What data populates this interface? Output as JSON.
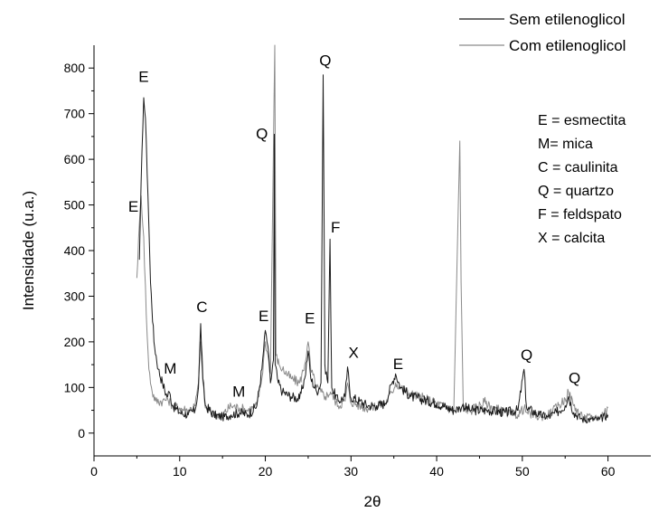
{
  "chart_data": {
    "type": "line",
    "xlabel": "2θ",
    "ylabel": "Intensidade (u.a.)",
    "xlim": [
      0,
      65
    ],
    "ylim": [
      -50,
      850
    ],
    "x_ticks": [
      0,
      10,
      20,
      30,
      40,
      50,
      60
    ],
    "y_ticks": [
      0,
      100,
      200,
      300,
      400,
      500,
      600,
      700,
      800
    ],
    "grid": false,
    "legend_position": "top-right",
    "series": [
      {
        "name": "Sem etilenoglicol",
        "color": "#1a1a1a",
        "points": [
          [
            5.3,
            380
          ],
          [
            5.6,
            620
          ],
          [
            5.8,
            735
          ],
          [
            6.0,
            690
          ],
          [
            6.3,
            520
          ],
          [
            6.6,
            330
          ],
          [
            7.0,
            200
          ],
          [
            7.5,
            140
          ],
          [
            8.0,
            110
          ],
          [
            8.5,
            80
          ],
          [
            8.8,
            90
          ],
          [
            9.2,
            60
          ],
          [
            10.0,
            45
          ],
          [
            11.0,
            40
          ],
          [
            11.8,
            50
          ],
          [
            12.2,
            100
          ],
          [
            12.45,
            240
          ],
          [
            12.7,
            120
          ],
          [
            13.0,
            60
          ],
          [
            14.0,
            40
          ],
          [
            15.0,
            35
          ],
          [
            16.0,
            40
          ],
          [
            17.0,
            45
          ],
          [
            18.0,
            40
          ],
          [
            19.0,
            60
          ],
          [
            19.6,
            140
          ],
          [
            20.0,
            225
          ],
          [
            20.3,
            190
          ],
          [
            20.6,
            110
          ],
          [
            20.95,
            160
          ],
          [
            21.05,
            655
          ],
          [
            21.15,
            150
          ],
          [
            21.5,
            110
          ],
          [
            22.0,
            90
          ],
          [
            23.0,
            80
          ],
          [
            24.0,
            75
          ],
          [
            24.6,
            120
          ],
          [
            25.0,
            180
          ],
          [
            25.3,
            120
          ],
          [
            26.0,
            90
          ],
          [
            26.5,
            110
          ],
          [
            26.75,
            785
          ],
          [
            26.95,
            150
          ],
          [
            27.3,
            110
          ],
          [
            27.55,
            425
          ],
          [
            27.75,
            100
          ],
          [
            28.5,
            70
          ],
          [
            29.3,
            80
          ],
          [
            29.6,
            145
          ],
          [
            29.9,
            80
          ],
          [
            31.0,
            70
          ],
          [
            32.0,
            60
          ],
          [
            33.0,
            60
          ],
          [
            34.0,
            65
          ],
          [
            34.8,
            110
          ],
          [
            35.2,
            130
          ],
          [
            35.8,
            100
          ],
          [
            37.0,
            80
          ],
          [
            38.0,
            75
          ],
          [
            40.0,
            65
          ],
          [
            42.0,
            50
          ],
          [
            42.7,
            55
          ],
          [
            43.0,
            60
          ],
          [
            44.0,
            50
          ],
          [
            46.0,
            50
          ],
          [
            48.0,
            45
          ],
          [
            49.5,
            50
          ],
          [
            50.2,
            140
          ],
          [
            50.5,
            55
          ],
          [
            52.0,
            40
          ],
          [
            53.0,
            35
          ],
          [
            54.0,
            45
          ],
          [
            55.0,
            60
          ],
          [
            55.4,
            80
          ],
          [
            56.0,
            45
          ],
          [
            57.0,
            30
          ],
          [
            58.0,
            30
          ],
          [
            59.0,
            30
          ],
          [
            60.0,
            40
          ]
        ]
      },
      {
        "name": "Com etilenoglicol",
        "color": "#8a8a8a",
        "points": [
          [
            5.0,
            340
          ],
          [
            5.3,
            460
          ],
          [
            5.5,
            520
          ],
          [
            5.8,
            430
          ],
          [
            6.1,
            260
          ],
          [
            6.4,
            140
          ],
          [
            6.8,
            90
          ],
          [
            7.2,
            70
          ],
          [
            8.0,
            70
          ],
          [
            8.6,
            75
          ],
          [
            9.2,
            60
          ],
          [
            10.0,
            55
          ],
          [
            11.0,
            50
          ],
          [
            11.8,
            60
          ],
          [
            12.2,
            110
          ],
          [
            12.45,
            200
          ],
          [
            12.7,
            110
          ],
          [
            13.0,
            55
          ],
          [
            14.0,
            40
          ],
          [
            15.0,
            40
          ],
          [
            16.0,
            60
          ],
          [
            17.0,
            55
          ],
          [
            18.0,
            50
          ],
          [
            19.0,
            60
          ],
          [
            19.6,
            120
          ],
          [
            20.0,
            200
          ],
          [
            20.3,
            170
          ],
          [
            20.6,
            130
          ],
          [
            21.1,
            850
          ],
          [
            21.25,
            170
          ],
          [
            21.6,
            150
          ],
          [
            22.0,
            140
          ],
          [
            23.0,
            120
          ],
          [
            24.0,
            110
          ],
          [
            24.6,
            150
          ],
          [
            25.0,
            200
          ],
          [
            25.3,
            140
          ],
          [
            26.0,
            100
          ],
          [
            26.5,
            90
          ],
          [
            27.0,
            80
          ],
          [
            27.6,
            90
          ],
          [
            28.5,
            60
          ],
          [
            29.3,
            70
          ],
          [
            29.6,
            110
          ],
          [
            29.9,
            70
          ],
          [
            31.0,
            60
          ],
          [
            32.0,
            55
          ],
          [
            33.0,
            60
          ],
          [
            34.0,
            65
          ],
          [
            34.8,
            90
          ],
          [
            35.2,
            110
          ],
          [
            35.8,
            100
          ],
          [
            37.0,
            85
          ],
          [
            38.0,
            80
          ],
          [
            40.0,
            65
          ],
          [
            42.0,
            50
          ],
          [
            42.7,
            640
          ],
          [
            42.85,
            330
          ],
          [
            43.1,
            55
          ],
          [
            44.0,
            50
          ],
          [
            45.8,
            70
          ],
          [
            46.0,
            60
          ],
          [
            48.0,
            45
          ],
          [
            49.5,
            40
          ],
          [
            50.2,
            55
          ],
          [
            50.5,
            45
          ],
          [
            52.0,
            35
          ],
          [
            53.0,
            40
          ],
          [
            54.0,
            55
          ],
          [
            55.0,
            75
          ],
          [
            55.4,
            90
          ],
          [
            56.0,
            60
          ],
          [
            57.0,
            35
          ],
          [
            58.0,
            35
          ],
          [
            59.0,
            35
          ],
          [
            60.0,
            55
          ]
        ]
      }
    ],
    "annotations": [
      {
        "text": "E",
        "x": 5.8,
        "y": 770
      },
      {
        "text": "E",
        "x": 4.6,
        "y": 485
      },
      {
        "text": "M",
        "x": 8.9,
        "y": 130
      },
      {
        "text": "C",
        "x": 12.6,
        "y": 265
      },
      {
        "text": "M",
        "x": 16.9,
        "y": 80
      },
      {
        "text": "E",
        "x": 19.8,
        "y": 245
      },
      {
        "text": "Q",
        "x": 19.6,
        "y": 645
      },
      {
        "text": "E",
        "x": 25.2,
        "y": 240
      },
      {
        "text": "Q",
        "x": 27.0,
        "y": 805
      },
      {
        "text": "F",
        "x": 28.2,
        "y": 440
      },
      {
        "text": "X",
        "x": 30.3,
        "y": 165
      },
      {
        "text": "E",
        "x": 35.5,
        "y": 140
      },
      {
        "text": "Q",
        "x": 50.5,
        "y": 160
      },
      {
        "text": "Q",
        "x": 56.1,
        "y": 110
      }
    ],
    "key": [
      "E = esmectita",
      "M= mica",
      "C = caulinita",
      "Q = quartzo",
      "F = feldspato",
      "X = calcita"
    ]
  }
}
